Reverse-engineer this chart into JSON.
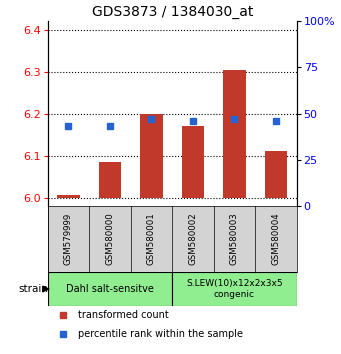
{
  "title": "GDS3873 / 1384030_at",
  "samples": [
    "GSM579999",
    "GSM580000",
    "GSM580001",
    "GSM580002",
    "GSM580003",
    "GSM580004"
  ],
  "bar_values": [
    6.005,
    6.085,
    6.2,
    6.17,
    6.305,
    6.11
  ],
  "bar_base": 6.0,
  "percentile_values": [
    43,
    43,
    47,
    46,
    47,
    46
  ],
  "ylim_left": [
    5.98,
    6.42
  ],
  "ylim_right": [
    0,
    100
  ],
  "yticks_left": [
    6.0,
    6.1,
    6.2,
    6.3,
    6.4
  ],
  "yticks_right": [
    0,
    25,
    50,
    75,
    100
  ],
  "yticklabels_right": [
    "0",
    "25",
    "50",
    "75",
    "100%"
  ],
  "bar_color": "#c0392b",
  "percentile_color": "#2563d0",
  "group1_label": "Dahl salt-sensitve",
  "group2_label": "S.LEW(10)x12x2x3x5\ncongenic",
  "group1_indices": [
    0,
    1,
    2
  ],
  "group2_indices": [
    3,
    4,
    5
  ],
  "group_bg_color": "#90ee90",
  "sample_bg_color": "#d3d3d3",
  "legend_bar_label": "transformed count",
  "legend_pct_label": "percentile rank within the sample",
  "strain_label": "strain",
  "bar_width": 0.55
}
